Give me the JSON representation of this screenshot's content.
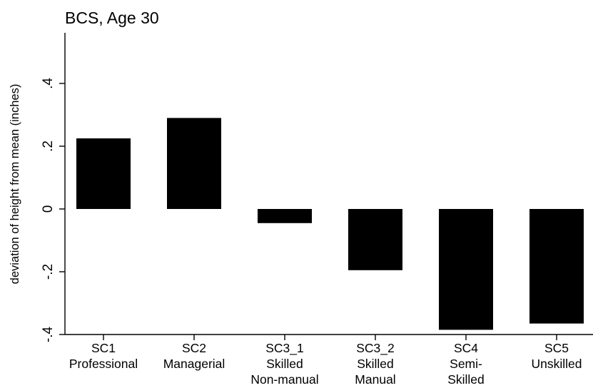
{
  "chart_data": {
    "type": "bar",
    "title": "BCS, Age 30",
    "ylabel": "deviation of height from mean (inches)",
    "xlabel": "",
    "categories": [
      [
        "SC1",
        "Professional"
      ],
      [
        "SC2",
        "Managerial"
      ],
      [
        "SC3_1",
        "Skilled",
        "Non-manual"
      ],
      [
        "SC3_2",
        "Skilled",
        "Manual"
      ],
      [
        "SC4",
        "Semi-",
        "Skilled"
      ],
      [
        "SC5",
        "Unskilled"
      ]
    ],
    "values": [
      0.225,
      0.29,
      -0.045,
      -0.195,
      -0.385,
      -0.365
    ],
    "ylim": [
      -0.4,
      0.55
    ],
    "yticks": [
      -0.4,
      -0.2,
      0,
      0.2,
      0.4
    ],
    "ytick_labels": [
      "-.4",
      "-.2",
      "0",
      ".2",
      ".4"
    ],
    "bar_color": "#000000",
    "grid": false,
    "legend": "none"
  }
}
